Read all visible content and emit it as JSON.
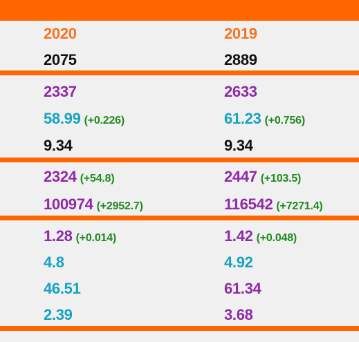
{
  "headers": {
    "col1": "2020",
    "col2": "2019"
  },
  "section1": {
    "row1": {
      "col1": "2075",
      "col2": "2889"
    }
  },
  "section2": {
    "row1": {
      "col1": "2337",
      "col2": "2633"
    },
    "row2": {
      "col1": "58.99",
      "col1_delta": "(+0.226)",
      "col2": "61.23",
      "col2_delta": "(+0.756)"
    },
    "row3": {
      "col1": "9.34",
      "col2": "9.34"
    }
  },
  "section3": {
    "row1": {
      "col1": "2324",
      "col1_delta": "(+54.8)",
      "col2": "2447",
      "col2_delta": "(+103.5)"
    },
    "row2": {
      "col1": "100974",
      "col1_delta": "(+2952.7)",
      "col2": "116542",
      "col2_delta": "(+7271.4)"
    }
  },
  "section4": {
    "row1": {
      "col1": "1.28",
      "col1_delta": "(+0.014)",
      "col2": "1.42",
      "col2_delta": "(+0.048)"
    },
    "row2": {
      "col1": "4.8",
      "col2": "4.92"
    },
    "row3": {
      "col1": "46.51",
      "col2": "61.34"
    },
    "row4": {
      "col1": "2.39",
      "col2": "3.68"
    }
  },
  "colors": {
    "accent_bar": "#ff6600",
    "header_text": "#f47424",
    "black": "#111111",
    "purple": "#8f2aa6",
    "teal": "#15a3bf",
    "delta_green": "#1f8a1f",
    "background": "#f0f0f0"
  }
}
